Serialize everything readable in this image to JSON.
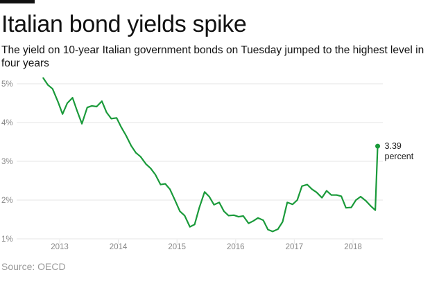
{
  "header": {
    "title": "Italian bond yields spike",
    "subtitle": "The yield on 10-year Italian government bonds on Tuesday jumped to the highest level in four years"
  },
  "footer": {
    "source": "Source: OECD"
  },
  "colors": {
    "line": "#1a9a3a",
    "grid": "#e4e4e4",
    "axis_text": "#888888",
    "accent_bar": "#111111"
  },
  "chart_data": {
    "type": "line",
    "title": "Italian bond yields spike",
    "xlabel": "",
    "ylabel": "",
    "y_ticks": [
      "1%",
      "2%",
      "3%",
      "4%",
      "5%"
    ],
    "y_tick_values": [
      1,
      2,
      3,
      4,
      5
    ],
    "x_ticks": [
      "2013",
      "2014",
      "2015",
      "2016",
      "2017",
      "2018"
    ],
    "x_tick_values": [
      2013,
      2014,
      2015,
      2016,
      2017,
      2018
    ],
    "xlim": [
      2012.5,
      2018.5
    ],
    "ylim": [
      1,
      5.2
    ],
    "grid": "horizontal",
    "annotation": {
      "value_label": "3.39",
      "unit_label": "percent",
      "x": 2018.42,
      "y": 3.39
    },
    "series": [
      {
        "x": [
          2012.72,
          2012.8,
          2012.88,
          2012.97,
          2013.05,
          2013.13,
          2013.22,
          2013.3,
          2013.38,
          2013.47,
          2013.55,
          2013.63,
          2013.72,
          2013.8,
          2013.88,
          2013.97,
          2014.05,
          2014.13,
          2014.22,
          2014.3,
          2014.38,
          2014.47,
          2014.55,
          2014.63,
          2014.72,
          2014.8,
          2014.88,
          2014.97,
          2015.05,
          2015.13,
          2015.22,
          2015.3,
          2015.38,
          2015.47,
          2015.55,
          2015.63,
          2015.72,
          2015.8,
          2015.88,
          2015.97,
          2016.05,
          2016.13,
          2016.22,
          2016.3,
          2016.38,
          2016.47,
          2016.55,
          2016.63,
          2016.72,
          2016.8,
          2016.88,
          2016.97,
          2017.05,
          2017.13,
          2017.22,
          2017.3,
          2017.38,
          2017.47,
          2017.55,
          2017.63,
          2017.72,
          2017.8,
          2017.88,
          2017.97,
          2018.05,
          2018.13,
          2018.22,
          2018.3,
          2018.38,
          2018.42
        ],
        "values": [
          5.15,
          4.97,
          4.87,
          4.54,
          4.22,
          4.5,
          4.64,
          4.29,
          3.97,
          4.39,
          4.43,
          4.41,
          4.55,
          4.26,
          4.1,
          4.12,
          3.88,
          3.67,
          3.4,
          3.22,
          3.12,
          2.93,
          2.82,
          2.66,
          2.4,
          2.42,
          2.28,
          1.98,
          1.71,
          1.6,
          1.31,
          1.37,
          1.8,
          2.21,
          2.09,
          1.88,
          1.94,
          1.71,
          1.6,
          1.61,
          1.57,
          1.59,
          1.4,
          1.46,
          1.54,
          1.48,
          1.24,
          1.19,
          1.25,
          1.44,
          1.94,
          1.89,
          2.0,
          2.36,
          2.4,
          2.28,
          2.2,
          2.06,
          2.24,
          2.13,
          2.13,
          2.1,
          1.8,
          1.81,
          2.0,
          2.09,
          1.98,
          1.85,
          1.74,
          3.39
        ]
      }
    ]
  }
}
